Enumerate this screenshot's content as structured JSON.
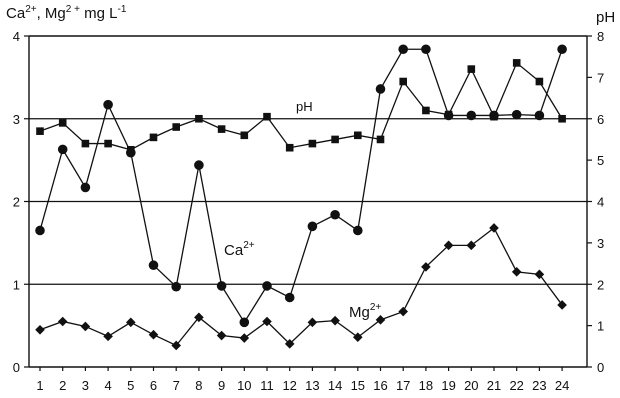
{
  "chart_data": {
    "type": "line",
    "categories": [
      "1",
      "2",
      "3",
      "4",
      "5",
      "6",
      "7",
      "8",
      "9",
      "10",
      "11",
      "12",
      "13",
      "14",
      "15",
      "16",
      "17",
      "18",
      "19",
      "20",
      "21",
      "22",
      "23",
      "24"
    ],
    "left_axis": {
      "label_base": "Ca",
      "label_sup1": "2+",
      "label_mid": ", Mg",
      "label_sup2": "2 +",
      "label_units": " mg L",
      "label_sup3": "-1",
      "ylim": [
        0,
        4
      ],
      "ticks": [
        "0",
        "1",
        "2",
        "3",
        "4"
      ]
    },
    "right_axis": {
      "label": "pH",
      "ylim": [
        0,
        8
      ],
      "ticks": [
        "0",
        "1",
        "2",
        "3",
        "4",
        "5",
        "6",
        "7",
        "8"
      ]
    },
    "grid": "horizontal at left-axis 1, 2, 3",
    "series": [
      {
        "label_base": "Ca",
        "label_sup": "2+",
        "marker": "circle",
        "axis": "left",
        "values": [
          1.65,
          2.63,
          2.17,
          3.17,
          2.59,
          1.23,
          0.97,
          2.44,
          0.98,
          0.54,
          0.98,
          0.84,
          1.7,
          1.84,
          1.65,
          3.36,
          3.84,
          3.84,
          3.04,
          3.04,
          3.04,
          3.05,
          3.04,
          3.84
        ]
      },
      {
        "label_base": "Mg",
        "label_sup": "2+",
        "marker": "diamond",
        "axis": "left",
        "values": [
          0.45,
          0.55,
          0.49,
          0.37,
          0.54,
          0.39,
          0.26,
          0.6,
          0.38,
          0.35,
          0.55,
          0.28,
          0.54,
          0.56,
          0.36,
          0.57,
          0.67,
          1.21,
          1.47,
          1.47,
          1.68,
          1.15,
          1.12,
          0.75
        ]
      },
      {
        "label": "pH",
        "marker": "square",
        "axis": "right",
        "values": [
          5.7,
          5.9,
          5.4,
          5.4,
          5.25,
          5.55,
          5.8,
          6.0,
          5.75,
          5.6,
          6.05,
          5.3,
          5.4,
          5.5,
          5.6,
          5.5,
          6.9,
          6.2,
          6.1,
          7.2,
          6.05,
          7.35,
          6.9,
          6.0
        ]
      }
    ]
  }
}
